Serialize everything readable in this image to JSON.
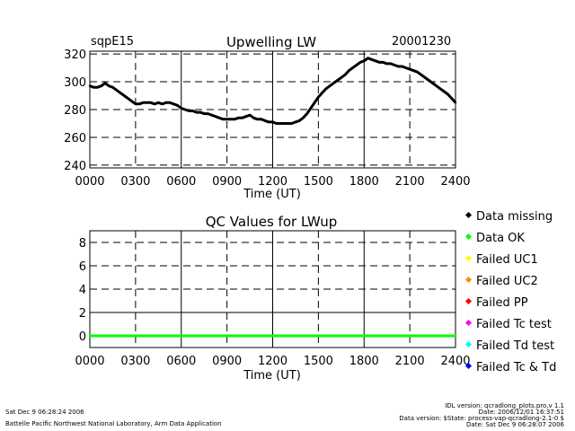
{
  "header": {
    "site": "sqpE15",
    "date": "20001230"
  },
  "chart_data": [
    {
      "type": "line",
      "title": "Upwelling LW",
      "xlabel": "Time (UT)",
      "ylabel": "",
      "xlim": [
        0,
        24
      ],
      "ylim": [
        238,
        322
      ],
      "x_ticks": [
        "0000",
        "0300",
        "0600",
        "0900",
        "1200",
        "1500",
        "1800",
        "2100",
        "2400"
      ],
      "y_ticks": [
        240,
        260,
        280,
        300,
        320
      ],
      "series": [
        {
          "name": "LWup",
          "color": "#000000",
          "x": [
            0.0,
            0.25,
            0.5,
            0.75,
            1.0,
            1.25,
            1.5,
            1.75,
            2.0,
            2.25,
            2.5,
            2.75,
            3.0,
            3.25,
            3.5,
            3.75,
            4.0,
            4.25,
            4.5,
            4.75,
            5.0,
            5.25,
            5.5,
            5.75,
            6.0,
            6.25,
            6.5,
            6.75,
            7.0,
            7.25,
            7.5,
            7.75,
            8.0,
            8.25,
            8.5,
            8.75,
            9.0,
            9.25,
            9.5,
            9.75,
            10.0,
            10.25,
            10.5,
            10.75,
            11.0,
            11.25,
            11.5,
            11.75,
            12.0,
            12.25,
            12.5,
            12.75,
            13.0,
            13.25,
            13.5,
            13.75,
            14.0,
            14.25,
            14.5,
            14.75,
            15.0,
            15.25,
            15.5,
            15.75,
            16.0,
            16.25,
            16.5,
            16.75,
            17.0,
            17.25,
            17.5,
            17.75,
            18.0,
            18.25,
            18.5,
            18.75,
            19.0,
            19.25,
            19.5,
            19.75,
            20.0,
            20.25,
            20.5,
            20.75,
            21.0,
            21.25,
            21.5,
            21.75,
            22.0,
            22.25,
            22.5,
            22.75,
            23.0,
            23.25,
            23.5,
            23.75,
            24.0
          ],
          "y": [
            297,
            296,
            296,
            297,
            299,
            297,
            296,
            294,
            292,
            290,
            288,
            286,
            284,
            284,
            285,
            285,
            285,
            284,
            285,
            284,
            285,
            285,
            284,
            283,
            281,
            280,
            279,
            279,
            278,
            278,
            277,
            277,
            276,
            275,
            274,
            273,
            273,
            273,
            273,
            274,
            274,
            275,
            276,
            274,
            273,
            273,
            272,
            271,
            271,
            270,
            270,
            270,
            270,
            270,
            271,
            272,
            274,
            277,
            281,
            285,
            289,
            292,
            295,
            297,
            299,
            301,
            303,
            305,
            308,
            310,
            312,
            314,
            315,
            317,
            316,
            315,
            314,
            314,
            313,
            313,
            312,
            311,
            311,
            310,
            309,
            308,
            307,
            305,
            303,
            301,
            299,
            297,
            295,
            293,
            291,
            288,
            285
          ]
        }
      ]
    },
    {
      "type": "line",
      "title": "QC Values for LWup",
      "xlabel": "Time (UT)",
      "ylabel": "",
      "xlim": [
        0,
        24
      ],
      "ylim": [
        -1,
        9
      ],
      "x_ticks": [
        "0000",
        "0300",
        "0600",
        "0900",
        "1200",
        "1500",
        "1800",
        "2100",
        "2400"
      ],
      "y_ticks": [
        0,
        2,
        4,
        6,
        8
      ],
      "series": [
        {
          "name": "Data OK",
          "color": "#00ff00",
          "x": [
            0,
            24
          ],
          "y": [
            0,
            0
          ]
        }
      ],
      "legend": {
        "position": "right",
        "items": [
          {
            "label": "Data missing",
            "color": "#000000"
          },
          {
            "label": "Data OK",
            "color": "#00ff00"
          },
          {
            "label": "Failed UC1",
            "color": "#ffff00"
          },
          {
            "label": "Failed UC2",
            "color": "#ff8c00"
          },
          {
            "label": "Failed PP",
            "color": "#ff0000"
          },
          {
            "label": "Failed Tc test",
            "color": "#ff00ff"
          },
          {
            "label": "Failed Td test",
            "color": "#00ffff"
          },
          {
            "label": "Failed Tc & Td",
            "color": "#0000ff"
          }
        ]
      }
    }
  ],
  "footer": {
    "left_date": "Sat Dec  9 06:28:24 2006",
    "left_org": "Battelle Pacific Northwest National Laboratory, Arm Data Application",
    "right_lines": [
      "IDL version: qcradlong_plots.pro,v 1.1",
      "Date: 2006/12/01 16:37:51",
      "Data version: $State: process-vap-qcradlong-2.1-0 $",
      "Date: Sat Dec  9 06:28:07 2006"
    ]
  }
}
